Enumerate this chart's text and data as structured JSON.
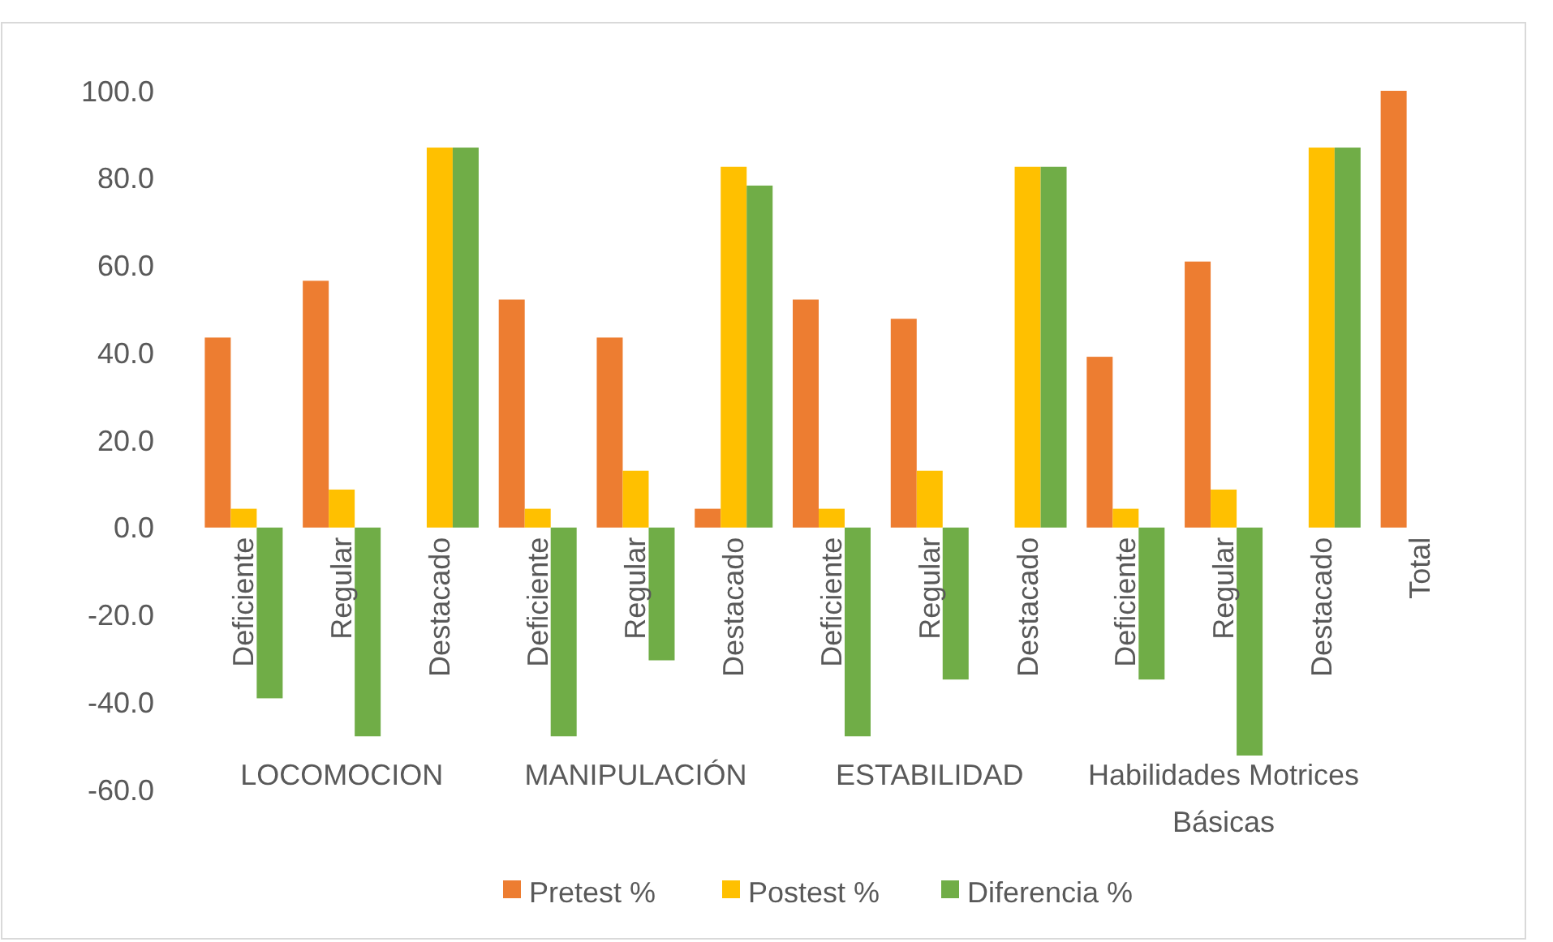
{
  "chart_data": {
    "type": "bar",
    "categories": [
      "Deficiente",
      "Regular",
      "Destacado",
      "Deficiente",
      "Regular",
      "Destacado",
      "Deficiente",
      "Regular",
      "Destacado",
      "Deficiente",
      "Regular",
      "Destacado",
      "Total"
    ],
    "series": [
      {
        "name": "Pretest %",
        "color": "#ed7d31",
        "values": [
          43.5,
          56.5,
          0,
          52.2,
          43.5,
          4.3,
          52.2,
          47.8,
          0,
          39.1,
          60.9,
          0,
          100
        ]
      },
      {
        "name": "Postest %",
        "color": "#ffc000",
        "values": [
          4.3,
          8.7,
          87.0,
          4.3,
          13.0,
          82.6,
          4.3,
          13.0,
          82.6,
          4.3,
          8.7,
          87.0,
          null
        ]
      },
      {
        "name": "Diferencia %",
        "color": "#70ad47",
        "values": [
          -39.1,
          -47.8,
          87.0,
          -47.8,
          -30.4,
          78.3,
          -47.8,
          -34.8,
          82.6,
          -34.8,
          -52.2,
          87.0,
          null
        ]
      }
    ],
    "annotations": [
      "LOCOMOCION",
      "MANIPULACIÓN",
      "ESTABILIDAD",
      "Habilidades Motrices Básicas"
    ],
    "ylim": [
      -60,
      100
    ],
    "yticks": [
      {
        "value": -60,
        "label": "-60.0"
      },
      {
        "value": -40,
        "label": "-40.0"
      },
      {
        "value": -20,
        "label": "-20.0"
      },
      {
        "value": 0,
        "label": "0.0"
      },
      {
        "value": 20,
        "label": "20.0"
      },
      {
        "value": 40,
        "label": "40.0"
      },
      {
        "value": 60,
        "label": "60.0"
      },
      {
        "value": 80,
        "label": "80.0"
      },
      {
        "value": 100,
        "label": "100.0"
      }
    ],
    "grid": false,
    "legend": "bottom"
  }
}
